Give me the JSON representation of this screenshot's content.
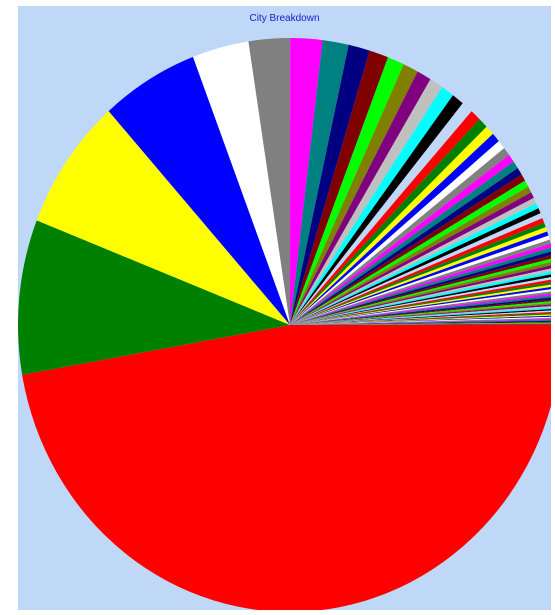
{
  "chart_data": {
    "type": "pie",
    "title": "City Breakdown",
    "start_angle_deg": 0,
    "direction": "clockwise",
    "values": [
      52.0,
      9.6,
      8.2,
      6.4,
      3.7,
      2.7,
      2.1,
      1.7,
      1.4,
      1.25,
      1.1,
      1.0,
      0.95,
      0.9,
      0.85,
      0.8,
      0.75,
      0.7,
      0.65,
      0.6,
      0.58,
      0.55,
      0.52,
      0.5,
      0.48,
      0.46,
      0.44,
      0.42,
      0.4,
      0.38,
      0.36,
      0.34,
      0.33,
      0.32,
      0.3,
      0.29,
      0.28,
      0.27,
      0.26,
      0.25,
      0.24,
      0.23,
      0.22,
      0.21,
      0.2,
      0.2,
      0.19,
      0.18,
      0.18,
      0.17,
      0.16,
      0.16,
      0.15,
      0.15,
      0.14,
      0.14,
      0.13,
      0.13,
      0.12,
      0.12,
      0.11,
      0.11,
      0.1,
      0.1,
      0.1,
      0.09,
      0.09,
      0.09,
      0.08,
      0.08,
      0.08,
      0.07,
      0.07,
      0.07,
      0.06,
      0.06,
      0.06,
      0.05,
      0.05,
      0.05,
      0.05
    ],
    "colors": [
      "#ff0000",
      "#008000",
      "#ffff00",
      "#0000ff",
      "#ffffff",
      "#808080",
      "#ff00ff",
      "#008080",
      "#000080",
      "#800000",
      "#00ff00",
      "#808000",
      "#800080",
      "#c0c0c0",
      "#00ffff",
      "#000000",
      "#c0d8f8"
    ]
  }
}
